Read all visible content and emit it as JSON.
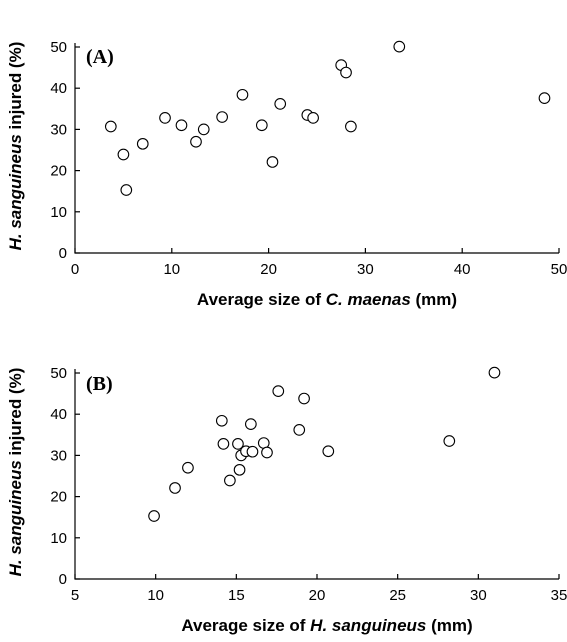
{
  "chart_data": [
    {
      "type": "scatter",
      "panel_label": "(A)",
      "xlabel_parts": [
        "Average size of ",
        "C. maenas",
        " (mm)"
      ],
      "ylabel_parts": [
        "H. sanguineus",
        " injured (%)"
      ],
      "xlim": [
        0,
        50
      ],
      "ylim": [
        0,
        50
      ],
      "xticks": [
        "0",
        "10",
        "20",
        "30",
        "40",
        "50"
      ],
      "yticks": [
        "0",
        "10",
        "20",
        "30",
        "40",
        "50"
      ],
      "marker": "open-circle",
      "points": [
        {
          "x": 3.7,
          "y": 30.7
        },
        {
          "x": 5.0,
          "y": 23.9
        },
        {
          "x": 5.3,
          "y": 15.3
        },
        {
          "x": 7.0,
          "y": 26.5
        },
        {
          "x": 9.3,
          "y": 32.8
        },
        {
          "x": 11.0,
          "y": 31.0
        },
        {
          "x": 12.5,
          "y": 27.0
        },
        {
          "x": 13.3,
          "y": 30.0
        },
        {
          "x": 15.2,
          "y": 33.0
        },
        {
          "x": 17.3,
          "y": 38.4
        },
        {
          "x": 19.3,
          "y": 31.0
        },
        {
          "x": 20.4,
          "y": 22.1
        },
        {
          "x": 21.2,
          "y": 36.2
        },
        {
          "x": 24.0,
          "y": 33.5
        },
        {
          "x": 24.6,
          "y": 32.8
        },
        {
          "x": 27.5,
          "y": 45.6
        },
        {
          "x": 28.0,
          "y": 43.8
        },
        {
          "x": 28.5,
          "y": 30.7
        },
        {
          "x": 33.5,
          "y": 50.1
        },
        {
          "x": 48.5,
          "y": 37.6
        }
      ]
    },
    {
      "type": "scatter",
      "panel_label": "(B)",
      "xlabel_parts": [
        "Average size of ",
        "H. sanguineus",
        " (mm)"
      ],
      "ylabel_parts": [
        "H. sanguineus",
        " injured (%)"
      ],
      "xlim": [
        5,
        35
      ],
      "ylim": [
        0,
        50
      ],
      "xticks": [
        "5",
        "10",
        "15",
        "20",
        "25",
        "30",
        "35"
      ],
      "yticks": [
        "0",
        "10",
        "20",
        "30",
        "40",
        "50"
      ],
      "marker": "open-circle",
      "points": [
        {
          "x": 9.9,
          "y": 15.3
        },
        {
          "x": 11.2,
          "y": 22.1
        },
        {
          "x": 12.0,
          "y": 27.0
        },
        {
          "x": 14.1,
          "y": 38.4
        },
        {
          "x": 14.2,
          "y": 32.8
        },
        {
          "x": 14.6,
          "y": 23.9
        },
        {
          "x": 15.1,
          "y": 32.8
        },
        {
          "x": 15.2,
          "y": 26.5
        },
        {
          "x": 15.3,
          "y": 30.0
        },
        {
          "x": 15.6,
          "y": 31.0
        },
        {
          "x": 15.9,
          "y": 37.6
        },
        {
          "x": 16.0,
          "y": 30.9
        },
        {
          "x": 16.7,
          "y": 33.0
        },
        {
          "x": 16.9,
          "y": 30.7
        },
        {
          "x": 17.6,
          "y": 45.6
        },
        {
          "x": 18.9,
          "y": 36.2
        },
        {
          "x": 19.2,
          "y": 43.8
        },
        {
          "x": 20.7,
          "y": 31.0
        },
        {
          "x": 28.2,
          "y": 33.5
        },
        {
          "x": 31.0,
          "y": 50.1
        }
      ]
    }
  ]
}
